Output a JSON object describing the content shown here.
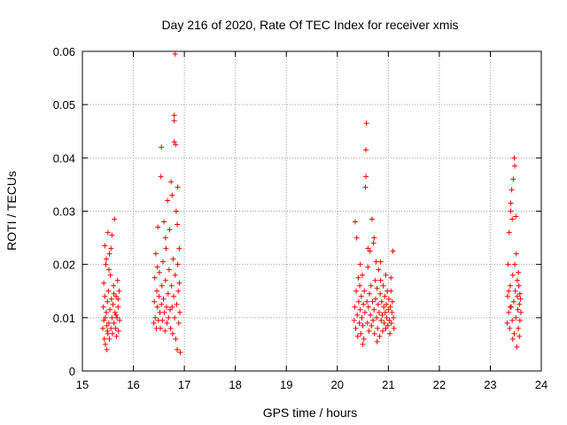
{
  "chart_data": {
    "type": "scatter",
    "title": "Day 216 of 2020, Rate Of TEC Index for receiver xmis",
    "xlabel": "GPS time / hours",
    "ylabel": "ROTI / TECUs",
    "xlim": [
      15,
      24
    ],
    "ylim": [
      0,
      0.06
    ],
    "x_ticks": [
      "15",
      "16",
      "17",
      "18",
      "19",
      "20",
      "21",
      "22",
      "23",
      "24"
    ],
    "y_ticks": [
      "0",
      "0.01",
      "0.02",
      "0.03",
      "0.04",
      "0.05",
      "0.06"
    ],
    "grid": true,
    "marker": "plus",
    "color": "#ff0000",
    "series": [
      {
        "points": [
          [
            15.4,
            0.008
          ],
          [
            15.41,
            0.012
          ],
          [
            15.42,
            0.0165
          ],
          [
            15.42,
            0.0095
          ],
          [
            15.43,
            0.006
          ],
          [
            15.44,
            0.014
          ],
          [
            15.45,
            0.01
          ],
          [
            15.45,
            0.005
          ],
          [
            15.46,
            0.02
          ],
          [
            15.47,
            0.011
          ],
          [
            15.48,
            0.0085
          ],
          [
            15.48,
            0.004
          ],
          [
            15.49,
            0.013
          ],
          [
            15.5,
            0.007
          ],
          [
            15.5,
            0.026
          ],
          [
            15.51,
            0.015
          ],
          [
            15.52,
            0.009
          ],
          [
            15.53,
            0.022
          ],
          [
            15.53,
            0.006
          ],
          [
            15.54,
            0.0115
          ],
          [
            15.55,
            0.018
          ],
          [
            15.56,
            0.008
          ],
          [
            15.57,
            0.0135
          ],
          [
            15.58,
            0.01
          ],
          [
            15.58,
            0.0255
          ],
          [
            15.59,
            0.007
          ],
          [
            15.6,
            0.0125
          ],
          [
            15.61,
            0.016
          ],
          [
            15.62,
            0.009
          ],
          [
            15.63,
            0.0285
          ],
          [
            15.64,
            0.011
          ],
          [
            15.65,
            0.008
          ],
          [
            15.66,
            0.014
          ],
          [
            15.67,
            0.0065
          ],
          [
            15.68,
            0.01
          ],
          [
            15.69,
            0.017
          ],
          [
            15.7,
            0.012
          ],
          [
            15.71,
            0.0075
          ],
          [
            15.72,
            0.015
          ],
          [
            15.73,
            0.0095
          ],
          [
            15.44,
            0.0235
          ],
          [
            15.47,
            0.021
          ],
          [
            15.52,
            0.019
          ],
          [
            15.56,
            0.023
          ],
          [
            15.62,
            0.0145
          ],
          [
            15.66,
            0.0105
          ],
          [
            15.7,
            0.0135
          ],
          [
            15.49,
            0.0075
          ],
          [
            16.4,
            0.009
          ],
          [
            16.41,
            0.013
          ],
          [
            16.42,
            0.0175
          ],
          [
            16.43,
            0.01
          ],
          [
            16.44,
            0.022
          ],
          [
            16.45,
            0.008
          ],
          [
            16.46,
            0.015
          ],
          [
            16.47,
            0.012
          ],
          [
            16.48,
            0.027
          ],
          [
            16.49,
            0.0095
          ],
          [
            16.5,
            0.014
          ],
          [
            16.51,
            0.0185
          ],
          [
            16.52,
            0.011
          ],
          [
            16.53,
            0.008
          ],
          [
            16.54,
            0.0365
          ],
          [
            16.55,
            0.0125
          ],
          [
            16.55,
            0.042
          ],
          [
            16.56,
            0.016
          ],
          [
            16.57,
            0.0095
          ],
          [
            16.58,
            0.0205
          ],
          [
            16.59,
            0.0135
          ],
          [
            16.6,
            0.028
          ],
          [
            16.61,
            0.011
          ],
          [
            16.62,
            0.0075
          ],
          [
            16.63,
            0.017
          ],
          [
            16.64,
            0.023
          ],
          [
            16.65,
            0.012
          ],
          [
            16.66,
            0.009
          ],
          [
            16.67,
            0.032
          ],
          [
            16.68,
            0.0145
          ],
          [
            16.69,
            0.01
          ],
          [
            16.7,
            0.019
          ],
          [
            16.71,
            0.0265
          ],
          [
            16.72,
            0.0115
          ],
          [
            16.73,
            0.008
          ],
          [
            16.74,
            0.0355
          ],
          [
            16.75,
            0.016
          ],
          [
            16.76,
            0.012
          ],
          [
            16.77,
            0.007
          ],
          [
            16.78,
            0.021
          ],
          [
            16.79,
            0.014
          ],
          [
            16.8,
            0.043
          ],
          [
            16.8,
            0.047
          ],
          [
            16.81,
            0.01
          ],
          [
            16.82,
            0.018
          ],
          [
            16.83,
            0.006
          ],
          [
            16.84,
            0.03
          ],
          [
            16.85,
            0.0125
          ],
          [
            16.86,
            0.004
          ],
          [
            16.87,
            0.02
          ],
          [
            16.87,
            0.0345
          ],
          [
            16.88,
            0.015
          ],
          [
            16.89,
            0.009
          ],
          [
            16.9,
            0.023
          ],
          [
            16.91,
            0.011
          ],
          [
            16.92,
            0.0035
          ],
          [
            16.82,
            0.0595
          ],
          [
            16.8,
            0.048
          ],
          [
            16.83,
            0.0425
          ],
          [
            16.86,
            0.0275
          ],
          [
            16.9,
            0.0165
          ],
          [
            16.47,
            0.0195
          ],
          [
            16.63,
            0.025
          ],
          [
            16.76,
            0.033
          ],
          [
            20.33,
            0.0095
          ],
          [
            20.34,
            0.012
          ],
          [
            20.35,
            0.028
          ],
          [
            20.36,
            0.008
          ],
          [
            20.37,
            0.015
          ],
          [
            20.38,
            0.025
          ],
          [
            20.39,
            0.0105
          ],
          [
            20.4,
            0.0065
          ],
          [
            20.41,
            0.0175
          ],
          [
            20.42,
            0.013
          ],
          [
            20.43,
            0.009
          ],
          [
            20.44,
            0.016
          ],
          [
            20.45,
            0.0115
          ],
          [
            20.46,
            0.007
          ],
          [
            20.47,
            0.014
          ],
          [
            20.48,
            0.01
          ],
          [
            20.49,
            0.018
          ],
          [
            20.5,
            0.0085
          ],
          [
            20.51,
            0.0125
          ],
          [
            20.52,
            0.006
          ],
          [
            20.53,
            0.015
          ],
          [
            20.54,
            0.011
          ],
          [
            20.55,
            0.0345
          ],
          [
            20.56,
            0.0365
          ],
          [
            20.56,
            0.0415
          ],
          [
            20.57,
            0.0465
          ],
          [
            20.58,
            0.013
          ],
          [
            20.59,
            0.009
          ],
          [
            20.6,
            0.0195
          ],
          [
            20.61,
            0.012
          ],
          [
            20.62,
            0.0075
          ],
          [
            20.63,
            0.0145
          ],
          [
            20.64,
            0.0225
          ],
          [
            20.65,
            0.0105
          ],
          [
            20.66,
            0.016
          ],
          [
            20.67,
            0.0085
          ],
          [
            20.68,
            0.0285
          ],
          [
            20.69,
            0.013
          ],
          [
            20.7,
            0.0095
          ],
          [
            20.71,
            0.024
          ],
          [
            20.72,
            0.0115
          ],
          [
            20.73,
            0.007
          ],
          [
            20.74,
            0.017
          ],
          [
            20.75,
            0.0135
          ],
          [
            20.76,
            0.0205
          ],
          [
            20.77,
            0.01
          ],
          [
            20.78,
            0.0155
          ],
          [
            20.79,
            0.008
          ],
          [
            20.8,
            0.0125
          ],
          [
            20.81,
            0.019
          ],
          [
            20.82,
            0.011
          ],
          [
            20.83,
            0.0065
          ],
          [
            20.84,
            0.0145
          ],
          [
            20.85,
            0.017
          ],
          [
            20.86,
            0.0095
          ],
          [
            20.87,
            0.013
          ],
          [
            20.88,
            0.0105
          ],
          [
            20.89,
            0.0075
          ],
          [
            20.9,
            0.016
          ],
          [
            20.91,
            0.012
          ],
          [
            20.92,
            0.009
          ],
          [
            20.93,
            0.014
          ],
          [
            20.94,
            0.011
          ],
          [
            20.95,
            0.008
          ],
          [
            20.96,
            0.0125
          ],
          [
            20.97,
            0.01
          ],
          [
            20.98,
            0.015
          ],
          [
            20.99,
            0.0085
          ],
          [
            21.0,
            0.0115
          ],
          [
            21.01,
            0.0135
          ],
          [
            21.02,
            0.0095
          ],
          [
            21.03,
            0.007
          ],
          [
            21.04,
            0.012
          ],
          [
            21.05,
            0.015
          ],
          [
            21.06,
            0.009
          ],
          [
            21.07,
            0.011
          ],
          [
            21.08,
            0.013
          ],
          [
            21.09,
            0.0225
          ],
          [
            21.1,
            0.01
          ],
          [
            21.11,
            0.008
          ],
          [
            20.45,
            0.02
          ],
          [
            20.6,
            0.023
          ],
          [
            20.72,
            0.025
          ],
          [
            20.85,
            0.0205
          ],
          [
            20.95,
            0.018
          ],
          [
            21.05,
            0.0175
          ],
          [
            20.5,
            0.005
          ],
          [
            20.78,
            0.0055
          ],
          [
            23.33,
            0.009
          ],
          [
            23.34,
            0.014
          ],
          [
            23.35,
            0.02
          ],
          [
            23.36,
            0.011
          ],
          [
            23.37,
            0.026
          ],
          [
            23.38,
            0.008
          ],
          [
            23.39,
            0.016
          ],
          [
            23.4,
            0.03
          ],
          [
            23.41,
            0.012
          ],
          [
            23.42,
            0.034
          ],
          [
            23.43,
            0.0095
          ],
          [
            23.44,
            0.018
          ],
          [
            23.45,
            0.036
          ],
          [
            23.46,
            0.013
          ],
          [
            23.47,
            0.007
          ],
          [
            23.48,
            0.0385
          ],
          [
            23.49,
            0.015
          ],
          [
            23.5,
            0.01
          ],
          [
            23.51,
            0.022
          ],
          [
            23.52,
            0.0045
          ],
          [
            23.53,
            0.014
          ],
          [
            23.54,
            0.0115
          ],
          [
            23.55,
            0.008
          ],
          [
            23.56,
            0.016
          ],
          [
            23.57,
            0.0125
          ],
          [
            23.58,
            0.0095
          ],
          [
            23.59,
            0.0135
          ],
          [
            23.6,
            0.011
          ],
          [
            23.47,
            0.04
          ],
          [
            23.43,
            0.0285
          ],
          [
            23.4,
            0.0315
          ],
          [
            23.5,
            0.029
          ],
          [
            23.44,
            0.006
          ],
          [
            23.53,
            0.017
          ],
          [
            23.57,
            0.0065
          ],
          [
            23.39,
            0.012
          ],
          [
            23.48,
            0.02
          ],
          [
            23.55,
            0.0185
          ],
          [
            23.36,
            0.015
          ],
          [
            23.58,
            0.0145
          ]
        ]
      }
    ]
  }
}
